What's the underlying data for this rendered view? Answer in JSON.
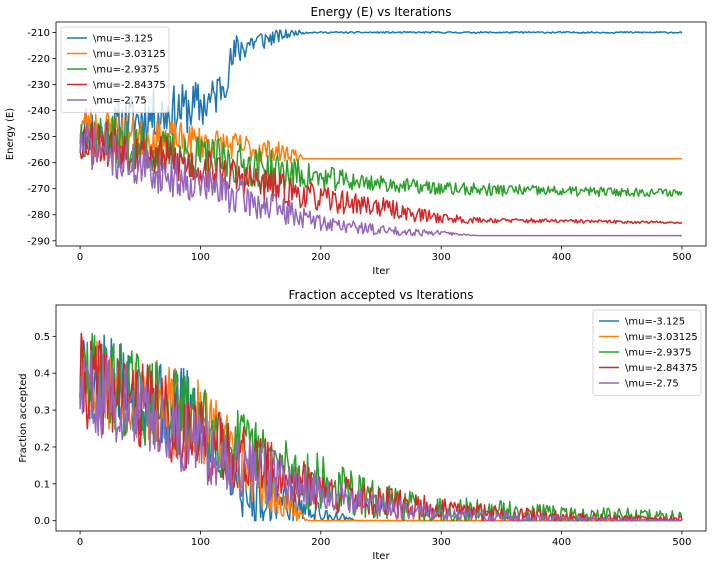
{
  "chart_data": [
    {
      "type": "line",
      "title": "Energy (E) vs Iterations",
      "xlabel": "Iter",
      "ylabel": "Energy (E)",
      "xlim": [
        -20,
        520
      ],
      "ylim": [
        -292,
        -206
      ],
      "xticks": [
        0,
        100,
        200,
        300,
        400,
        500
      ],
      "yticks": [
        -290,
        -280,
        -270,
        -260,
        -250,
        -240,
        -230,
        -220,
        -210
      ],
      "legend_position": "top-left",
      "series": [
        {
          "name": "\\mu=-3.125",
          "color": "#1f77b4",
          "profile": [
            [
              0,
              -245
            ],
            [
              20,
              -250
            ],
            [
              40,
              -244
            ],
            [
              60,
              -242
            ],
            [
              80,
              -240
            ],
            [
              100,
              -238
            ],
            [
              110,
              -236
            ],
            [
              120,
              -228
            ],
            [
              130,
              -217
            ],
            [
              140,
              -214
            ],
            [
              150,
              -213
            ],
            [
              160,
              -212
            ],
            [
              170,
              -211
            ],
            [
              180,
              -210
            ],
            [
              500,
              -210
            ]
          ],
          "noise": [
            [
              0,
              10
            ],
            [
              100,
              10
            ],
            [
              120,
              8
            ],
            [
              140,
              6
            ],
            [
              160,
              3
            ],
            [
              180,
              1
            ],
            [
              190,
              0.3
            ],
            [
              500,
              0.3
            ]
          ],
          "seed": 11
        },
        {
          "name": "\\mu=-3.03125",
          "color": "#ff7f0e",
          "profile": [
            [
              0,
              -245
            ],
            [
              50,
              -250
            ],
            [
              100,
              -252
            ],
            [
              150,
              -255
            ],
            [
              180,
              -257
            ],
            [
              185,
              -258.5
            ],
            [
              500,
              -258.5
            ]
          ],
          "noise": [
            [
              0,
              9
            ],
            [
              150,
              5
            ],
            [
              180,
              3
            ],
            [
              185,
              0
            ],
            [
              500,
              0
            ]
          ],
          "seed": 23
        },
        {
          "name": "\\mu=-2.9375",
          "color": "#2ca02c",
          "profile": [
            [
              0,
              -248
            ],
            [
              50,
              -255
            ],
            [
              100,
              -258
            ],
            [
              150,
              -262
            ],
            [
              200,
              -266
            ],
            [
              250,
              -268
            ],
            [
              300,
              -270
            ],
            [
              400,
              -271
            ],
            [
              500,
              -271.5
            ]
          ],
          "noise": [
            [
              0,
              10
            ],
            [
              150,
              8
            ],
            [
              200,
              5
            ],
            [
              250,
              3
            ],
            [
              400,
              2
            ],
            [
              500,
              1.5
            ]
          ],
          "seed": 37
        },
        {
          "name": "\\mu=-2.84375",
          "color": "#d62728",
          "profile": [
            [
              0,
              -250
            ],
            [
              50,
              -256
            ],
            [
              100,
              -262
            ],
            [
              150,
              -268
            ],
            [
              200,
              -274
            ],
            [
              250,
              -277
            ],
            [
              280,
              -280
            ],
            [
              320,
              -282
            ],
            [
              500,
              -283
            ]
          ],
          "noise": [
            [
              0,
              10
            ],
            [
              150,
              7
            ],
            [
              200,
              5
            ],
            [
              280,
              3
            ],
            [
              330,
              1
            ],
            [
              500,
              0.4
            ]
          ],
          "seed": 53
        },
        {
          "name": "\\mu=-2.75",
          "color": "#9467bd",
          "profile": [
            [
              0,
              -252
            ],
            [
              50,
              -262
            ],
            [
              100,
              -268
            ],
            [
              150,
              -276
            ],
            [
              200,
              -283
            ],
            [
              250,
              -286
            ],
            [
              300,
              -287
            ],
            [
              330,
              -288
            ],
            [
              500,
              -288
            ]
          ],
          "noise": [
            [
              0,
              9
            ],
            [
              150,
              7
            ],
            [
              200,
              3
            ],
            [
              280,
              1.5
            ],
            [
              330,
              0
            ],
            [
              500,
              0
            ]
          ],
          "seed": 71
        }
      ]
    },
    {
      "type": "line",
      "title": "Fraction accepted vs Iterations",
      "xlabel": "Iter",
      "ylabel": "Fraction accepted",
      "xlim": [
        -20,
        520
      ],
      "ylim": [
        -0.028,
        0.585
      ],
      "xticks": [
        0,
        100,
        200,
        300,
        400,
        500
      ],
      "yticks": [
        0.0,
        0.1,
        0.2,
        0.3,
        0.4,
        0.5
      ],
      "legend_position": "top-right",
      "series": [
        {
          "name": "\\mu=-3.125",
          "color": "#1f77b4",
          "profile": [
            [
              0,
              0.4
            ],
            [
              20,
              0.38
            ],
            [
              60,
              0.32
            ],
            [
              100,
              0.28
            ],
            [
              120,
              0.18
            ],
            [
              140,
              0.06
            ],
            [
              160,
              0.06
            ],
            [
              180,
              0.04
            ],
            [
              200,
              0.02
            ],
            [
              230,
              0
            ],
            [
              500,
              0
            ]
          ],
          "noise": [
            [
              0,
              0.13
            ],
            [
              100,
              0.12
            ],
            [
              150,
              0.07
            ],
            [
              200,
              0.03
            ],
            [
              230,
              0
            ],
            [
              500,
              0
            ]
          ],
          "seed": 5
        },
        {
          "name": "\\mu=-3.03125",
          "color": "#ff7f0e",
          "profile": [
            [
              0,
              0.4
            ],
            [
              20,
              0.38
            ],
            [
              60,
              0.32
            ],
            [
              100,
              0.26
            ],
            [
              130,
              0.18
            ],
            [
              150,
              0.1
            ],
            [
              170,
              0.05
            ],
            [
              190,
              0
            ],
            [
              500,
              0
            ]
          ],
          "noise": [
            [
              0,
              0.13
            ],
            [
              100,
              0.12
            ],
            [
              150,
              0.07
            ],
            [
              180,
              0.03
            ],
            [
              190,
              0
            ],
            [
              500,
              0
            ]
          ],
          "seed": 17
        },
        {
          "name": "\\mu=-2.9375",
          "color": "#2ca02c",
          "profile": [
            [
              0,
              0.4
            ],
            [
              20,
              0.38
            ],
            [
              60,
              0.32
            ],
            [
              100,
              0.26
            ],
            [
              150,
              0.17
            ],
            [
              200,
              0.1
            ],
            [
              250,
              0.05
            ],
            [
              300,
              0.03
            ],
            [
              400,
              0.015
            ],
            [
              500,
              0.01
            ]
          ],
          "noise": [
            [
              0,
              0.13
            ],
            [
              100,
              0.12
            ],
            [
              150,
              0.1
            ],
            [
              200,
              0.08
            ],
            [
              250,
              0.05
            ],
            [
              300,
              0.04
            ],
            [
              400,
              0.025
            ],
            [
              500,
              0.02
            ]
          ],
          "seed": 29
        },
        {
          "name": "\\mu=-2.84375",
          "color": "#d62728",
          "profile": [
            [
              0,
              0.38
            ],
            [
              20,
              0.36
            ],
            [
              60,
              0.3
            ],
            [
              100,
              0.22
            ],
            [
              150,
              0.15
            ],
            [
              200,
              0.08
            ],
            [
              250,
              0.05
            ],
            [
              300,
              0.03
            ],
            [
              350,
              0.02
            ],
            [
              400,
              0.01
            ],
            [
              450,
              0.005
            ],
            [
              500,
              0.005
            ]
          ],
          "noise": [
            [
              0,
              0.13
            ],
            [
              100,
              0.11
            ],
            [
              150,
              0.08
            ],
            [
              200,
              0.06
            ],
            [
              300,
              0.03
            ],
            [
              400,
              0.015
            ],
            [
              500,
              0.008
            ]
          ],
          "seed": 41
        },
        {
          "name": "\\mu=-2.75",
          "color": "#9467bd",
          "profile": [
            [
              0,
              0.36
            ],
            [
              20,
              0.34
            ],
            [
              60,
              0.28
            ],
            [
              100,
              0.2
            ],
            [
              150,
              0.13
            ],
            [
              200,
              0.08
            ],
            [
              250,
              0.04
            ],
            [
              300,
              0.02
            ],
            [
              350,
              0.01
            ],
            [
              400,
              0.005
            ],
            [
              500,
              0
            ]
          ],
          "noise": [
            [
              0,
              0.12
            ],
            [
              100,
              0.1
            ],
            [
              150,
              0.08
            ],
            [
              200,
              0.05
            ],
            [
              250,
              0.035
            ],
            [
              300,
              0.02
            ],
            [
              400,
              0.01
            ],
            [
              500,
              0
            ]
          ],
          "seed": 59
        }
      ]
    }
  ]
}
